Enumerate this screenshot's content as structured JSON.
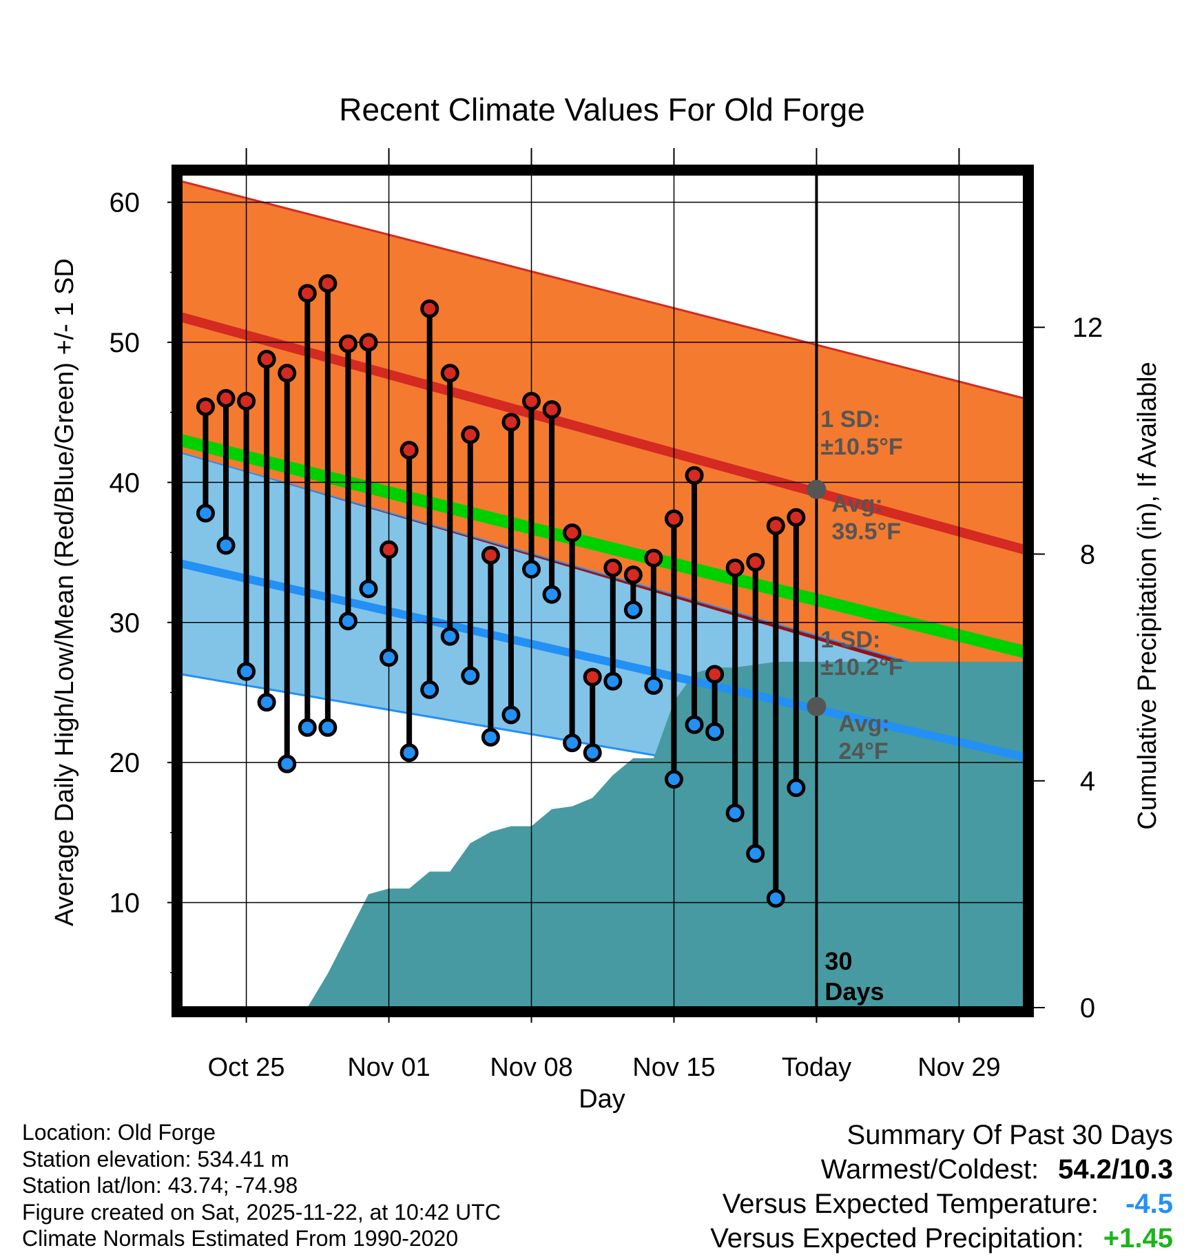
{
  "chart_data": {
    "type": "line",
    "title": "Recent Climate Values For Old Forge",
    "xlabel": "Day",
    "ylabel_left": "Average Daily High/Low/Mean (Red/Blue/Green) +/- 1 SD",
    "ylabel_right": "Cumulative Precipitation (in), If Available",
    "x_ticks": [
      "Oct 25",
      "Nov 01",
      "Nov 08",
      "Nov 15",
      "Today",
      "Nov 29"
    ],
    "x_tick_day_index": [
      3,
      10,
      17,
      24,
      31,
      38
    ],
    "xlim": [
      -0.2,
      41.2
    ],
    "ylim_left": [
      2.5,
      62
    ],
    "ylim_right": [
      0,
      14.7
    ],
    "y_ticks_left": [
      10,
      20,
      30,
      40,
      50,
      60
    ],
    "y_ticks_right": [
      0,
      4,
      8,
      12
    ],
    "observed_high": [
      45.4,
      46.0,
      45.8,
      48.8,
      47.8,
      53.5,
      54.2,
      49.9,
      50.0,
      35.2,
      42.3,
      52.4,
      47.8,
      43.4,
      34.8,
      44.3,
      45.8,
      45.2,
      36.4,
      26.1,
      33.9,
      33.4,
      34.6,
      37.4,
      40.5,
      26.3,
      33.9,
      34.3,
      36.9,
      37.5
    ],
    "observed_low": [
      37.8,
      35.5,
      26.5,
      24.3,
      19.9,
      22.5,
      22.5,
      30.1,
      32.4,
      27.5,
      20.7,
      25.2,
      29.0,
      26.2,
      21.8,
      23.4,
      33.8,
      32.0,
      21.4,
      20.7,
      25.8,
      30.9,
      25.5,
      18.8,
      22.7,
      22.2,
      16.4,
      13.5,
      10.3,
      18.2
    ],
    "normal_high_start": 51.8,
    "normal_high_end": 35.2,
    "normal_high_plus_sd_start": 61.5,
    "normal_high_plus_sd_end": 46.0,
    "normal_low_start": 34.2,
    "normal_low_end": 20.4,
    "normal_low_minus_sd_start": 26.3,
    "normal_low_minus_sd_end": 16.0,
    "normal_mean_start": 43.0,
    "normal_mean_end": 27.9,
    "cumulative_precip_in": [
      0,
      0,
      0,
      0,
      0,
      0,
      0,
      0.6,
      1.3,
      2.0,
      2.1,
      2.1,
      2.4,
      2.4,
      2.9,
      3.1,
      3.2,
      3.2,
      3.5,
      3.55,
      3.7,
      4.1,
      4.4,
      4.4,
      5.4,
      5.9,
      6.0,
      6.0,
      6.05,
      6.1,
      6.1
    ],
    "today_index": 31,
    "today_high_avg_label": "Avg:\n39.5°F",
    "today_high_sd_label": "1 SD:\n±10.5°F",
    "today_low_avg_label": "Avg:\n24°F",
    "today_low_sd_label": "1 SD:\n±10.2°F",
    "today_high_avg_value": 39.5,
    "today_low_avg_value": 24.0,
    "period_label": "30\nDays",
    "colors": {
      "high_band": "#f47a30",
      "high_line": "#d42a22",
      "low_band": "#82c3e8",
      "low_line": "#2290f5",
      "mean_line": "#00d000",
      "overlap": "#9c1010",
      "precip": "#479aa1",
      "marker_high": "#d42a22",
      "marker_low": "#2290f5",
      "annotation": "#555555"
    }
  },
  "info": {
    "location": "Location: Old Forge",
    "elevation": "Station elevation: 534.41 m",
    "latlon": "Station lat/lon: 43.74; -74.98",
    "created": "Figure created on Sat, 2025-11-22, at 10:42 UTC",
    "normals": "Climate Normals Estimated From 1990-2020"
  },
  "summary": {
    "heading": "Summary Of Past 30 Days",
    "warmest_coldest_label": "Warmest/Coldest:",
    "warmest_coldest_value": "54.2/10.3",
    "temp_label": "Versus Expected Temperature:",
    "temp_value": "-4.5",
    "precip_label": "Versus Expected Precipitation:",
    "precip_value": "+1.45",
    "temp_color": "#2290f5",
    "precip_color": "#1ab51a"
  }
}
